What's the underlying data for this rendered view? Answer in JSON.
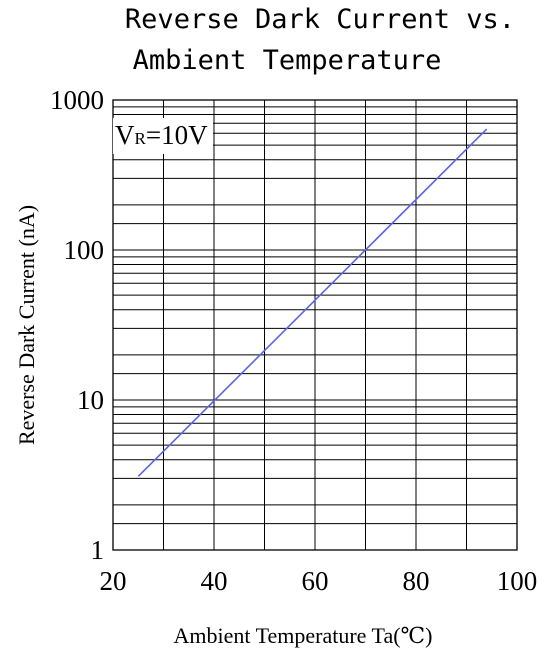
{
  "chart_data": {
    "type": "line",
    "title": [
      "Reverse Dark Current vs.",
      "Ambient Temperature"
    ],
    "xlabel": "Ambient Temperature  Ta(℃)",
    "ylabel": "Reverse Dark Current (nA)",
    "xlim": [
      20,
      100
    ],
    "ylim": [
      1,
      1000
    ],
    "yscale": "log",
    "grid": true,
    "x_ticks": [
      "20",
      "40",
      "60",
      "80",
      "100"
    ],
    "y_ticks": [
      "1",
      "10",
      "100",
      "1000"
    ],
    "annotation": {
      "main": "V",
      "sub": "R",
      "rest": "=10V"
    },
    "series": [
      {
        "color": "#5B63E8",
        "x": [
          25,
          94
        ],
        "y": [
          3.1,
          640
        ]
      }
    ]
  }
}
